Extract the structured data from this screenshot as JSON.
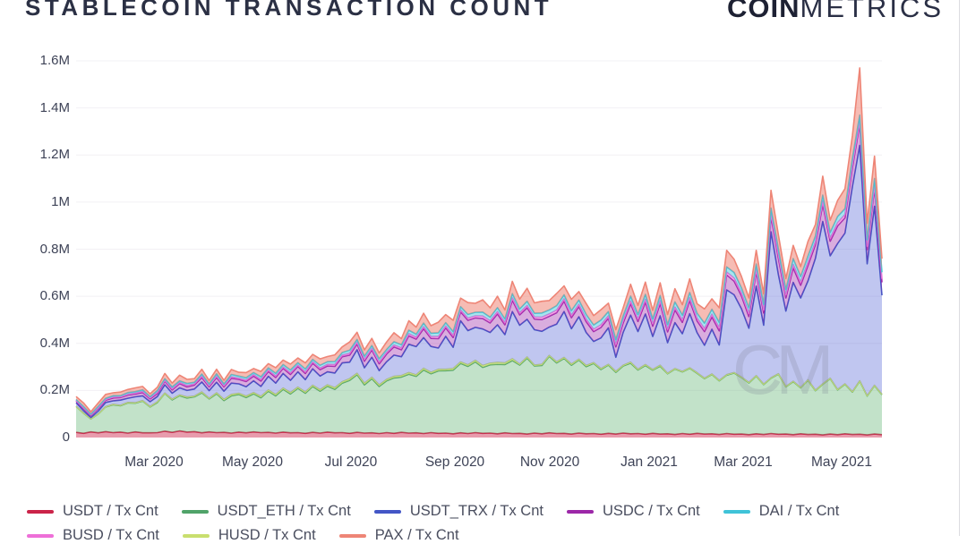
{
  "header": {
    "title": "STABLECOIN TRANSACTION COUNT",
    "logo_bold": "COIN",
    "logo_light": "METRICS"
  },
  "watermark": {
    "text": "CM"
  },
  "colors": {
    "grid": "#f2f0f4",
    "axis_text": "#3e4357",
    "title_text": "#2b3044",
    "logo_text": "#1d2133",
    "legend_text": "#4a4e5f",
    "border_line": "#dcdce0",
    "watermark": "rgba(120,124,140,0.22)"
  },
  "chart_data": {
    "type": "area",
    "stacked": true,
    "title": "STABLECOIN TRANSACTION COUNT",
    "xlabel": "",
    "ylabel": "",
    "unit": "transactions (values stored in thousands)",
    "value_scale": 1000,
    "ylim": [
      0,
      1600000
    ],
    "grid": true,
    "legend_position": "bottom",
    "x_ticks": [
      {
        "label": "Mar 2020",
        "pos": 0.0967
      },
      {
        "label": "May 2020",
        "pos": 0.2189
      },
      {
        "label": "Jul 2020",
        "pos": 0.3411
      },
      {
        "label": "Sep 2020",
        "pos": 0.47
      },
      {
        "label": "Nov 2020",
        "pos": 0.5878
      },
      {
        "label": "Jan 2021",
        "pos": 0.7111
      },
      {
        "label": "Mar 2021",
        "pos": 0.8278
      },
      {
        "label": "May 2021",
        "pos": 0.95
      }
    ],
    "y_ticks": [
      {
        "label": "1.6M",
        "value": 1600
      },
      {
        "label": "1.4M",
        "value": 1400
      },
      {
        "label": "1.2M",
        "value": 1200
      },
      {
        "label": "1M",
        "value": 1000
      },
      {
        "label": "0.8M",
        "value": 800
      },
      {
        "label": "0.6M",
        "value": 600
      },
      {
        "label": "0.4M",
        "value": 400
      },
      {
        "label": "0.2M",
        "value": 200
      },
      {
        "label": "0",
        "value": 0
      }
    ],
    "stack_order": [
      "USDT / Tx Cnt",
      "USDT_ETH / Tx Cnt",
      "HUSD / Tx Cnt",
      "USDT_TRX / Tx Cnt",
      "USDC / Tx Cnt",
      "BUSD / Tx Cnt",
      "DAI / Tx Cnt",
      "PAX / Tx Cnt"
    ],
    "series": [
      {
        "name": "USDT / Tx Cnt",
        "legend_row": 1,
        "color": "#cb2449",
        "fill": "rgba(203,36,73,0.45)",
        "values": [
          22,
          18,
          24,
          20,
          25,
          21,
          23,
          19,
          24,
          20,
          20,
          21,
          27,
          22,
          28,
          23,
          25,
          20,
          24,
          21,
          22,
          19,
          23,
          20,
          24,
          21,
          22,
          19,
          23,
          20,
          21,
          18,
          22,
          19,
          23,
          20,
          21,
          18,
          22,
          19,
          20,
          17,
          21,
          18,
          22,
          19,
          20,
          17,
          21,
          18,
          19,
          16,
          20,
          17,
          21,
          18,
          19,
          16,
          20,
          17,
          18,
          15,
          19,
          16,
          20,
          17,
          18,
          15,
          19,
          16,
          17,
          14,
          18,
          15,
          19,
          16,
          17,
          14,
          18,
          15,
          16,
          13,
          17,
          14,
          18,
          15,
          16,
          13,
          17,
          14,
          15,
          12,
          16,
          13,
          17,
          14,
          15,
          12,
          16,
          13,
          14,
          11,
          15,
          12,
          16,
          13,
          14,
          11,
          15,
          12
        ]
      },
      {
        "name": "USDT_ETH / Tx Cnt",
        "legend_row": 1,
        "color": "#50a369",
        "fill": "rgba(110,186,126,0.42)",
        "values": [
          110,
          85,
          55,
          80,
          105,
          118,
          112,
          128,
          122,
          135,
          110,
          128,
          160,
          138,
          150,
          145,
          148,
          170,
          140,
          165,
          135,
          158,
          160,
          150,
          162,
          148,
          175,
          158,
          182,
          165,
          188,
          170,
          195,
          178,
          195,
          185,
          210,
          225,
          245,
          205,
          230,
          200,
          220,
          235,
          235,
          250,
          240,
          270,
          250,
          265,
          265,
          270,
          295,
          285,
          300,
          280,
          290,
          295,
          290,
          310,
          290,
          322,
          285,
          290,
          325,
          300,
          318,
          292,
          310,
          285,
          298,
          275,
          290,
          262,
          285,
          300,
          270,
          292,
          268,
          288,
          255,
          278,
          262,
          280,
          255,
          235,
          252,
          228,
          248,
          260,
          240,
          220,
          245,
          212,
          235,
          255,
          200,
          225,
          195,
          230,
          185,
          215,
          235,
          190,
          210,
          180,
          225,
          165,
          205,
          170
        ]
      },
      {
        "name": "USDT_TRX / Tx Cnt",
        "legend_row": 1,
        "color": "#4356c6",
        "fill": "rgba(98,112,218,0.40)",
        "values": [
          15,
          10,
          5,
          12,
          18,
          15,
          22,
          18,
          25,
          20,
          20,
          22,
          35,
          25,
          30,
          28,
          30,
          42,
          32,
          45,
          35,
          48,
          40,
          40,
          50,
          42,
          58,
          48,
          62,
          52,
          65,
          52,
          70,
          58,
          55,
          62,
          80,
          70,
          100,
          65,
          85,
          60,
          75,
          90,
          80,
          120,
          120,
          130,
          110,
          90,
          140,
          90,
          175,
          145,
          140,
          155,
          130,
          160,
          120,
          200,
          165,
          160,
          150,
          140,
          120,
          160,
          195,
          150,
          180,
          140,
          90,
          130,
          155,
          60,
          140,
          200,
          160,
          215,
          140,
          210,
          130,
          195,
          160,
          230,
          170,
          140,
          190,
          150,
          360,
          330,
          290,
          230,
          380,
          250,
          620,
          420,
          320,
          420,
          380,
          420,
          560,
          690,
          520,
          620,
          640,
          870,
          1000,
          560,
          760,
          420
        ]
      },
      {
        "name": "USDC / Tx Cnt",
        "legend_row": 1,
        "color": "#9c27a8",
        "fill": "rgba(156,39,168,0.38)",
        "values": [
          8,
          10,
          9,
          11,
          10,
          12,
          11,
          13,
          12,
          14,
          12,
          13,
          16,
          14,
          18,
          15,
          17,
          19,
          16,
          20,
          18,
          21,
          19,
          22,
          20,
          23,
          21,
          24,
          22,
          25,
          23,
          26,
          24,
          27,
          25,
          28,
          26,
          30,
          25,
          28,
          31,
          29,
          33,
          35,
          30,
          36,
          32,
          38,
          34,
          40,
          36,
          42,
          38,
          44,
          40,
          45,
          41,
          46,
          42,
          48,
          44,
          49,
          45,
          50,
          46,
          48,
          44,
          47,
          43,
          46,
          42,
          45,
          41,
          44,
          40,
          48,
          43,
          50,
          44,
          52,
          46,
          54,
          48,
          56,
          50,
          58,
          52,
          60,
          64,
          58,
          55,
          50,
          60,
          52,
          65,
          70,
          56,
          62,
          54,
          66,
          58,
          72,
          62,
          75,
          65,
          80,
          90,
          60,
          78,
          55
        ]
      },
      {
        "name": "DAI / Tx Cnt",
        "legend_row": 1,
        "color": "#3fc3d8",
        "fill": "rgba(63,195,216,0.45)",
        "values": [
          4,
          5,
          4,
          6,
          5,
          6,
          5,
          7,
          6,
          7,
          6,
          8,
          6,
          8,
          7,
          9,
          7,
          9,
          8,
          10,
          8,
          10,
          9,
          10,
          9,
          11,
          9,
          11,
          10,
          12,
          10,
          12,
          10,
          12,
          11,
          13,
          11,
          13,
          12,
          14,
          12,
          14,
          12,
          14,
          13,
          15,
          13,
          15,
          14,
          16,
          14,
          16,
          14,
          16,
          15,
          17,
          15,
          17,
          16,
          18,
          16,
          18,
          16,
          18,
          17,
          19,
          17,
          19,
          18,
          20,
          18,
          20,
          18,
          20,
          19,
          21,
          19,
          21,
          20,
          22,
          20,
          22,
          20,
          22,
          21,
          23,
          21,
          23,
          22,
          24,
          22,
          24,
          22,
          24,
          23,
          25,
          23,
          25,
          24,
          26,
          24,
          26,
          24,
          26,
          25,
          27,
          25,
          27,
          26,
          28
        ]
      },
      {
        "name": "BUSD / Tx Cnt",
        "legend_row": 2,
        "color": "#ee6fd8",
        "fill": "rgba(238,111,216,0.45)",
        "values": [
          2,
          3,
          2,
          3,
          3,
          4,
          3,
          4,
          4,
          5,
          4,
          5,
          4,
          5,
          5,
          6,
          5,
          6,
          5,
          6,
          5,
          6,
          5,
          6,
          6,
          7,
          6,
          7,
          6,
          7,
          6,
          7,
          6,
          7,
          7,
          8,
          7,
          8,
          7,
          8,
          7,
          8,
          7,
          8,
          8,
          9,
          8,
          9,
          8,
          9,
          8,
          9,
          8,
          9,
          9,
          10,
          9,
          10,
          9,
          10,
          9,
          10,
          9,
          10,
          10,
          11,
          10,
          11,
          10,
          11,
          10,
          11,
          10,
          11,
          11,
          12,
          11,
          12,
          11,
          12,
          11,
          12,
          11,
          12,
          12,
          13,
          12,
          13,
          12,
          13,
          12,
          13,
          12,
          13,
          13,
          14,
          13,
          14,
          13,
          14,
          13,
          14,
          13,
          14,
          14,
          15,
          14,
          15,
          14,
          15
        ]
      },
      {
        "name": "HUSD / Tx Cnt",
        "legend_row": 2,
        "color": "#c9df6e",
        "fill": "rgba(201,223,110,0.55)",
        "values": [
          1,
          1,
          1,
          1,
          1,
          2,
          2,
          2,
          2,
          2,
          2,
          3,
          2,
          3,
          3,
          4,
          3,
          4,
          3,
          4,
          5,
          6,
          5,
          6,
          5,
          6,
          5,
          6,
          5,
          6,
          5,
          6,
          5,
          6,
          6,
          7,
          6,
          7,
          6,
          7,
          6,
          7,
          6,
          7,
          6,
          7,
          6,
          7,
          6,
          7,
          6,
          7,
          6,
          7,
          7,
          8,
          7,
          8,
          7,
          8,
          4,
          5,
          4,
          5,
          4,
          5,
          4,
          5,
          4,
          5,
          3,
          4,
          3,
          4,
          3,
          4,
          3,
          4,
          3,
          4,
          2,
          2,
          2,
          2,
          2,
          2,
          2,
          2,
          2,
          2,
          2,
          2,
          2,
          2,
          2,
          2,
          2,
          2,
          2,
          2,
          2,
          2,
          2,
          2,
          2,
          2,
          2,
          2,
          2,
          2
        ]
      },
      {
        "name": "PAX / Tx Cnt",
        "legend_row": 2,
        "color": "#ee8576",
        "fill": "rgba(238,133,118,0.55)",
        "values": [
          12,
          15,
          10,
          14,
          16,
          12,
          15,
          13,
          16,
          14,
          12,
          14,
          22,
          16,
          24,
          17,
          15,
          20,
          14,
          19,
          15,
          21,
          16,
          22,
          17,
          23,
          18,
          24,
          19,
          25,
          20,
          26,
          21,
          27,
          22,
          28,
          24,
          35,
          30,
          26,
          30,
          24,
          32,
          38,
          26,
          40,
          30,
          42,
          32,
          45,
          34,
          48,
          36,
          50,
          38,
          52,
          40,
          48,
          38,
          52,
          42,
          55,
          44,
          50,
          40,
          52,
          38,
          48,
          36,
          46,
          40,
          44,
          36,
          42,
          34,
          50,
          38,
          52,
          36,
          54,
          42,
          56,
          44,
          58,
          40,
          60,
          44,
          62,
          70,
          56,
          48,
          42,
          58,
          44,
          75,
          60,
          46,
          56,
          42,
          62,
          48,
          80,
          52,
          68,
          85,
          95,
          200,
          70,
          95,
          58
        ]
      }
    ]
  }
}
